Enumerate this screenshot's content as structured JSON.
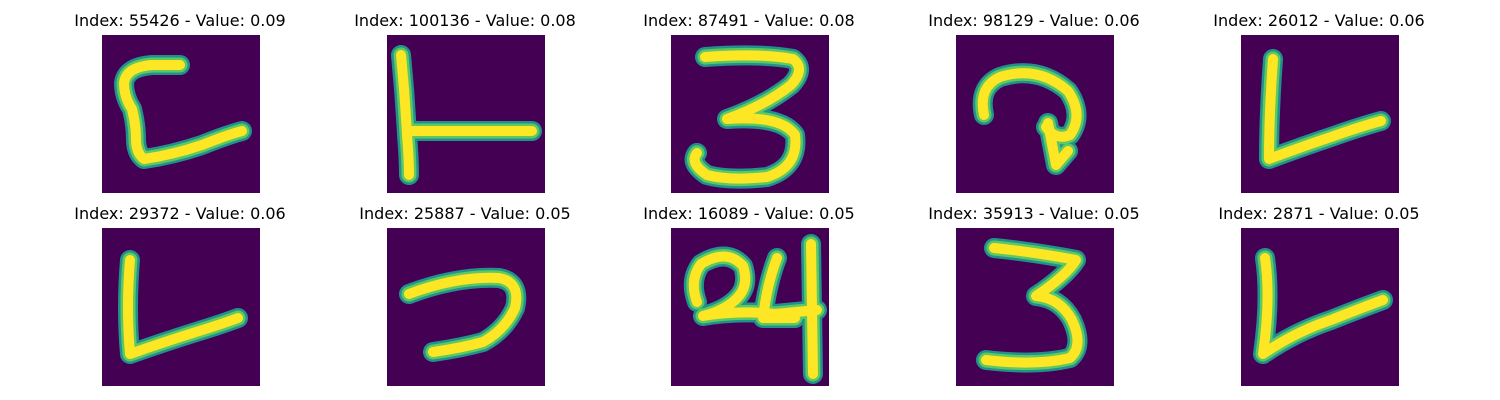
{
  "colors": {
    "background": "#440154",
    "stroke_core": "#fde725",
    "stroke_edge": "#5ec962",
    "stroke_halo": "#21918c"
  },
  "tiles": [
    {
      "title": "Index: 55426 - Value: 0.09"
    },
    {
      "title": "Index: 100136 - Value: 0.08"
    },
    {
      "title": "Index: 87491 - Value: 0.08"
    },
    {
      "title": "Index: 98129 - Value: 0.06"
    },
    {
      "title": "Index: 26012 - Value: 0.06"
    },
    {
      "title": "Index: 29372 - Value: 0.06"
    },
    {
      "title": "Index: 25887 - Value: 0.05"
    },
    {
      "title": "Index: 16089 - Value: 0.05"
    },
    {
      "title": "Index: 35913 - Value: 0.05"
    },
    {
      "title": "Index: 2871 - Value: 0.05"
    }
  ]
}
